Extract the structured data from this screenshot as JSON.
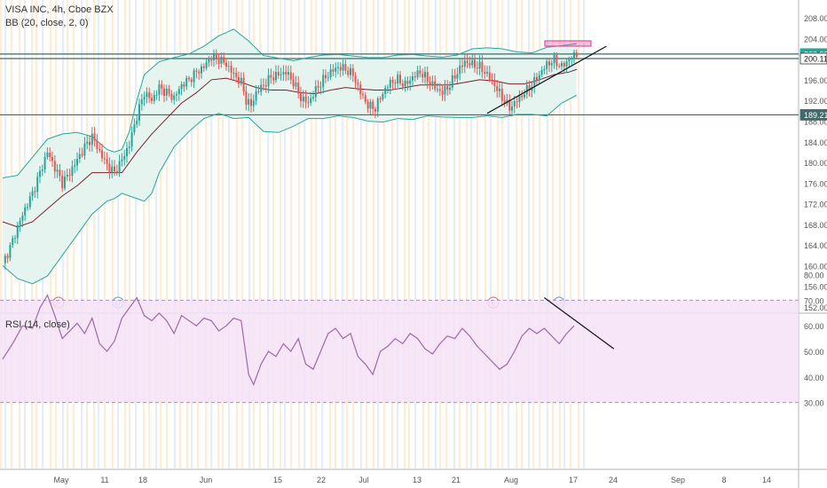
{
  "header": {
    "symbol": "VISA INC, 4h, Cboe BZX",
    "bb_label": "BB (20, close, 2, 0)",
    "rsi_label": "RSI (14, close)"
  },
  "colors": {
    "up": "#26a69a",
    "down": "#ef5350",
    "bb_line": "#26a69a",
    "bb_fill": "#e6f4ef",
    "basis": "#7b1f2a",
    "hline": "#3e6b6b",
    "rsi": "#9c6aa8",
    "rsi_band": "#f4e2f7",
    "session_orange": "#fde9cc",
    "session_blue": "#dfe8f5",
    "box": "#e04fa0"
  },
  "price_axis": {
    "ticks": [
      "208.00",
      "204.00",
      "200.00",
      "196.00",
      "192.00",
      "188.00",
      "184.00",
      "180.00",
      "176.00",
      "172.00",
      "168.00",
      "164.00",
      "160.00",
      "156.00",
      "152.00"
    ]
  },
  "rsi_axis": {
    "ticks": [
      "80.00",
      "70.00",
      "60.00",
      "50.00",
      "40.00",
      "30.00"
    ]
  },
  "price_labels": [
    {
      "text": "200.99",
      "bg": "#26a69a",
      "value": 200.99
    },
    {
      "text": "200.11",
      "bg": "#ffffff",
      "value": 200.11
    },
    {
      "text": "189.21",
      "bg": "#3e6b6b",
      "value": 189.21
    }
  ],
  "time_axis": [
    "May",
    "11",
    "18",
    "Jun",
    "15",
    "22",
    "Jul",
    "13",
    "21",
    "Aug",
    "17",
    "24",
    "Sep",
    "8",
    "14"
  ],
  "events": [
    {
      "letter": "E",
      "color": "#e05a6b"
    },
    {
      "letter": "D",
      "color": "#4a9ad6"
    },
    {
      "letter": "E",
      "color": "#e05a6b"
    },
    {
      "letter": "D",
      "color": "#4a9ad6"
    }
  ],
  "chart_data": {
    "type": "candlestick",
    "title": "VISA INC, 4h, Cboe BZX",
    "ylim": [
      152,
      210
    ],
    "horizontal_levels": [
      200.99,
      200.11,
      189.21
    ],
    "close_path": [
      [
        0,
        160.5
      ],
      [
        3,
        163.5
      ],
      [
        6,
        167.5
      ],
      [
        9,
        171
      ],
      [
        12,
        174
      ],
      [
        15,
        178
      ],
      [
        18,
        182
      ],
      [
        21,
        179
      ],
      [
        24,
        176
      ],
      [
        27,
        178
      ],
      [
        30,
        180.5
      ],
      [
        33,
        183
      ],
      [
        36,
        185
      ],
      [
        39,
        182
      ],
      [
        42,
        179.5
      ],
      [
        45,
        178
      ],
      [
        48,
        180.5
      ],
      [
        51,
        183.5
      ],
      [
        54,
        189
      ],
      [
        57,
        193.5
      ],
      [
        60,
        192
      ],
      [
        63,
        194.5
      ],
      [
        66,
        193.5
      ],
      [
        69,
        192.5
      ],
      [
        72,
        195
      ],
      [
        75,
        196
      ],
      [
        78,
        197.5
      ],
      [
        81,
        198.5
      ],
      [
        84,
        200.5
      ],
      [
        87,
        200
      ],
      [
        90,
        199
      ],
      [
        93,
        197
      ],
      [
        96,
        195.5
      ],
      [
        98,
        192
      ],
      [
        100,
        191
      ],
      [
        102,
        193.5
      ],
      [
        105,
        195
      ],
      [
        108,
        196.5
      ],
      [
        111,
        197
      ],
      [
        114,
        197.5
      ],
      [
        117,
        195.5
      ],
      [
        120,
        192.5
      ],
      [
        123,
        191.5
      ],
      [
        126,
        194
      ],
      [
        129,
        196
      ],
      [
        132,
        197.5
      ],
      [
        135,
        198.5
      ],
      [
        138,
        198
      ],
      [
        141,
        197
      ],
      [
        144,
        193.5
      ],
      [
        147,
        191
      ],
      [
        150,
        190.5
      ],
      [
        153,
        193.5
      ],
      [
        156,
        195.5
      ],
      [
        159,
        196
      ],
      [
        162,
        195
      ],
      [
        165,
        196.5
      ],
      [
        168,
        197.5
      ],
      [
        171,
        196
      ],
      [
        174,
        194.5
      ],
      [
        177,
        193.5
      ],
      [
        180,
        195
      ],
      [
        183,
        197.5
      ],
      [
        186,
        199.5
      ],
      [
        189,
        199
      ],
      [
        192,
        198.5
      ],
      [
        195,
        197
      ],
      [
        198,
        195
      ],
      [
        201,
        192.5
      ],
      [
        204,
        190.5
      ],
      [
        207,
        192
      ],
      [
        210,
        193.5
      ],
      [
        213,
        195
      ],
      [
        216,
        197
      ],
      [
        219,
        199
      ],
      [
        222,
        199.8
      ],
      [
        225,
        198.5
      ],
      [
        228,
        200
      ],
      [
        231,
        200.99
      ]
    ],
    "bb_upper": [
      [
        0,
        177
      ],
      [
        6,
        177.5
      ],
      [
        12,
        181
      ],
      [
        18,
        184.5
      ],
      [
        24,
        185.5
      ],
      [
        30,
        185.8
      ],
      [
        36,
        185
      ],
      [
        42,
        182.5
      ],
      [
        45,
        182
      ],
      [
        48,
        182.5
      ],
      [
        51,
        186
      ],
      [
        54,
        192
      ],
      [
        57,
        197
      ],
      [
        63,
        199.5
      ],
      [
        69,
        200.3
      ],
      [
        75,
        201
      ],
      [
        81,
        202.5
      ],
      [
        87,
        204.5
      ],
      [
        93,
        205.8
      ],
      [
        99,
        203.5
      ],
      [
        105,
        200.7
      ],
      [
        111,
        200.2
      ],
      [
        117,
        199.7
      ],
      [
        123,
        200.3
      ],
      [
        129,
        200.8
      ],
      [
        135,
        200.9
      ],
      [
        141,
        200.6
      ],
      [
        147,
        200.3
      ],
      [
        153,
        200.3
      ],
      [
        159,
        200.8
      ],
      [
        165,
        200.9
      ],
      [
        171,
        200.6
      ],
      [
        177,
        200.4
      ],
      [
        183,
        200.8
      ],
      [
        189,
        202
      ],
      [
        195,
        202.2
      ],
      [
        201,
        202
      ],
      [
        207,
        201.4
      ],
      [
        213,
        201.2
      ],
      [
        219,
        202.3
      ],
      [
        225,
        202.6
      ],
      [
        231,
        203
      ]
    ],
    "bb_lower": [
      [
        0,
        160
      ],
      [
        6,
        157.5
      ],
      [
        12,
        156.5
      ],
      [
        18,
        158
      ],
      [
        24,
        162
      ],
      [
        30,
        166
      ],
      [
        36,
        170
      ],
      [
        42,
        172.5
      ],
      [
        45,
        173
      ],
      [
        48,
        174
      ],
      [
        51,
        173.5
      ],
      [
        54,
        173
      ],
      [
        57,
        172.5
      ],
      [
        60,
        174
      ],
      [
        63,
        178
      ],
      [
        69,
        183
      ],
      [
        75,
        186
      ],
      [
        81,
        188.5
      ],
      [
        87,
        189.5
      ],
      [
        93,
        188.5
      ],
      [
        99,
        188.7
      ],
      [
        105,
        186
      ],
      [
        111,
        185.8
      ],
      [
        117,
        187
      ],
      [
        123,
        188.5
      ],
      [
        129,
        188.5
      ],
      [
        135,
        189
      ],
      [
        141,
        188.7
      ],
      [
        147,
        188
      ],
      [
        153,
        187.8
      ],
      [
        159,
        188.5
      ],
      [
        165,
        188.3
      ],
      [
        171,
        189
      ],
      [
        177,
        188.8
      ],
      [
        183,
        188.7
      ],
      [
        189,
        188.7
      ],
      [
        195,
        189
      ],
      [
        201,
        188.7
      ],
      [
        207,
        189.3
      ],
      [
        213,
        189.3
      ],
      [
        219,
        189
      ],
      [
        225,
        191.5
      ],
      [
        231,
        193
      ]
    ],
    "bb_basis": [
      [
        0,
        168.5
      ],
      [
        6,
        167.5
      ],
      [
        12,
        168.5
      ],
      [
        18,
        171
      ],
      [
        24,
        173.5
      ],
      [
        30,
        175.5
      ],
      [
        36,
        178
      ],
      [
        42,
        178
      ],
      [
        48,
        178
      ],
      [
        54,
        182
      ],
      [
        60,
        185.5
      ],
      [
        66,
        188.5
      ],
      [
        72,
        191.5
      ],
      [
        78,
        193.5
      ],
      [
        84,
        196
      ],
      [
        90,
        196.3
      ],
      [
        96,
        195.5
      ],
      [
        102,
        194.5
      ],
      [
        108,
        194
      ],
      [
        114,
        194
      ],
      [
        120,
        193.5
      ],
      [
        126,
        193.3
      ],
      [
        132,
        194
      ],
      [
        138,
        194.5
      ],
      [
        144,
        194.2
      ],
      [
        150,
        194
      ],
      [
        156,
        194
      ],
      [
        162,
        194.5
      ],
      [
        168,
        195
      ],
      [
        174,
        195
      ],
      [
        180,
        195
      ],
      [
        186,
        195.5
      ],
      [
        192,
        196
      ],
      [
        198,
        195.8
      ],
      [
        204,
        195.2
      ],
      [
        210,
        195.2
      ],
      [
        216,
        196
      ],
      [
        222,
        197
      ],
      [
        228,
        197.5
      ],
      [
        231,
        198
      ]
    ],
    "trendline": [
      [
        195,
        189.5
      ],
      [
        243,
        202.5
      ]
    ],
    "rsi": {
      "ylim": [
        25,
        80
      ],
      "band": [
        30,
        70
      ],
      "series": [
        [
          0,
          47
        ],
        [
          4,
          53
        ],
        [
          8,
          60
        ],
        [
          12,
          59
        ],
        [
          15,
          67
        ],
        [
          18,
          72
        ],
        [
          21,
          64
        ],
        [
          24,
          55
        ],
        [
          27,
          58
        ],
        [
          30,
          61
        ],
        [
          33,
          57
        ],
        [
          36,
          63
        ],
        [
          39,
          53
        ],
        [
          42,
          50
        ],
        [
          45,
          54
        ],
        [
          48,
          63
        ],
        [
          51,
          67
        ],
        [
          54,
          71
        ],
        [
          57,
          64
        ],
        [
          60,
          62
        ],
        [
          63,
          65
        ],
        [
          66,
          62
        ],
        [
          69,
          57
        ],
        [
          72,
          64
        ],
        [
          75,
          62
        ],
        [
          78,
          60
        ],
        [
          81,
          63
        ],
        [
          84,
          62
        ],
        [
          87,
          58
        ],
        [
          90,
          60
        ],
        [
          93,
          63
        ],
        [
          96,
          62
        ],
        [
          99,
          41
        ],
        [
          101,
          37
        ],
        [
          104,
          45
        ],
        [
          107,
          50
        ],
        [
          110,
          48
        ],
        [
          113,
          53
        ],
        [
          116,
          50
        ],
        [
          119,
          55
        ],
        [
          122,
          45
        ],
        [
          125,
          43
        ],
        [
          128,
          50
        ],
        [
          131,
          57
        ],
        [
          134,
          59
        ],
        [
          137,
          55
        ],
        [
          140,
          57
        ],
        [
          143,
          48
        ],
        [
          146,
          45
        ],
        [
          149,
          41
        ],
        [
          152,
          50
        ],
        [
          155,
          52
        ],
        [
          158,
          55
        ],
        [
          161,
          53
        ],
        [
          164,
          57
        ],
        [
          167,
          55
        ],
        [
          170,
          51
        ],
        [
          173,
          49
        ],
        [
          176,
          53
        ],
        [
          179,
          56
        ],
        [
          182,
          55
        ],
        [
          185,
          59
        ],
        [
          188,
          56
        ],
        [
          191,
          52
        ],
        [
          194,
          49
        ],
        [
          197,
          46
        ],
        [
          200,
          43
        ],
        [
          203,
          45
        ],
        [
          206,
          50
        ],
        [
          209,
          56
        ],
        [
          212,
          59
        ],
        [
          215,
          57
        ],
        [
          218,
          59
        ],
        [
          221,
          56
        ],
        [
          224,
          53
        ],
        [
          227,
          57
        ],
        [
          230,
          60
        ]
      ],
      "trendline": [
        [
          218,
          71
        ],
        [
          246,
          51
        ]
      ]
    }
  }
}
